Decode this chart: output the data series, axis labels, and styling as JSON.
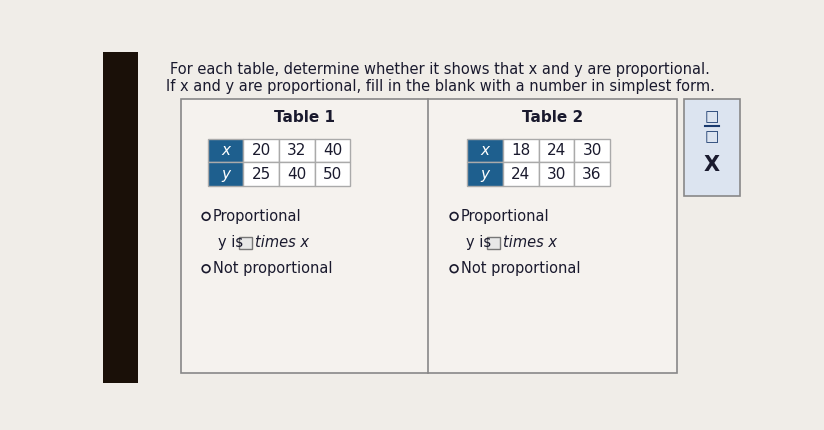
{
  "title_line1": "For each table, determine whether it shows that x and y are proportional.",
  "title_line2": "If x and y are proportional, fill in the blank with a number in simplest form.",
  "table1_title": "Table 1",
  "table2_title": "Table 2",
  "header_color": "#1e5f8e",
  "table1_x_values": [
    "x",
    "20",
    "32",
    "40"
  ],
  "table1_y_values": [
    "y",
    "25",
    "40",
    "50"
  ],
  "table2_x_values": [
    "x",
    "18",
    "24",
    "30"
  ],
  "table2_y_values": [
    "y",
    "24",
    "30",
    "36"
  ],
  "proportional_label": "Proportional",
  "not_proportional_label": "Not proportional",
  "y_is_label": "y is",
  "times_x_label": "times x",
  "page_bg": "#f0ede8",
  "left_dark": "#1a1008",
  "panel_bg": "#f5f2ee",
  "text_color": "#1a1a2e",
  "cell_bg": "#ffffff",
  "cell_border": "#aaaaaa",
  "blank_box_color": "#e8e8e8",
  "corner_box_bg": "#dce4f0",
  "fraction_color": "#1a3a6e"
}
